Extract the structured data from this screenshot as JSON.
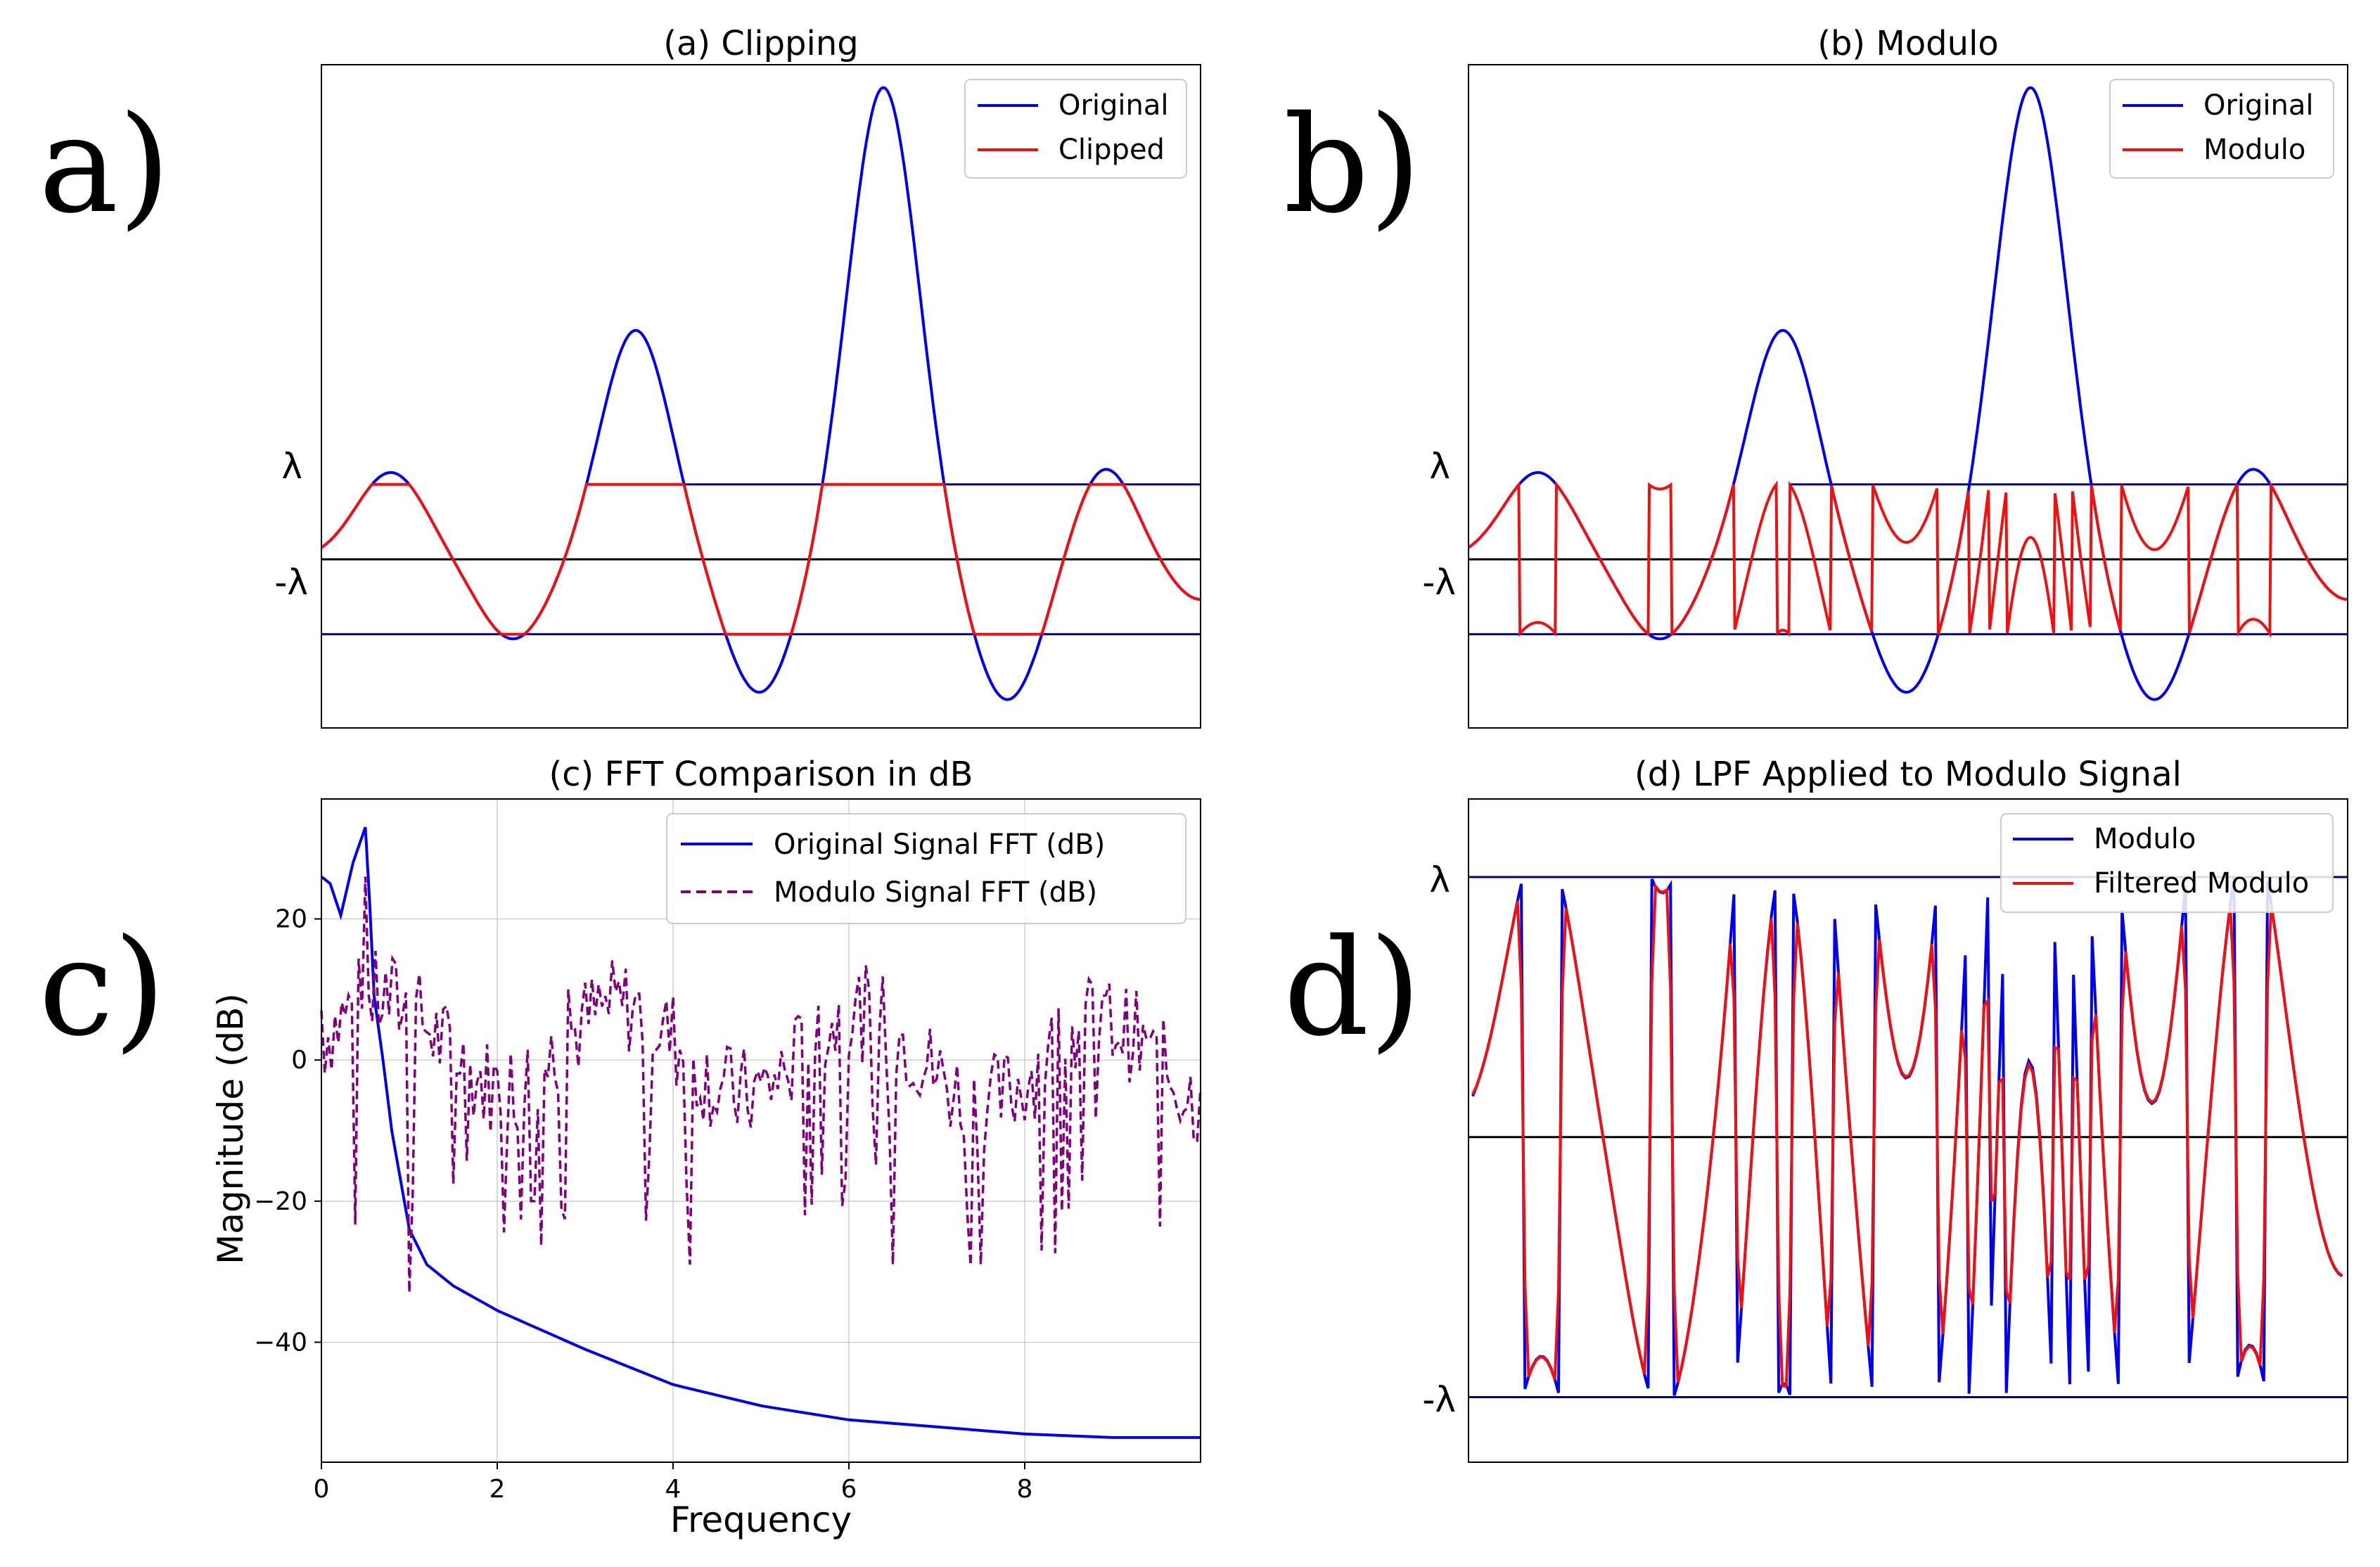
{
  "panel_letters": [
    "a)",
    "b)",
    "c)",
    "d)"
  ],
  "colors": {
    "original": "#0000ee",
    "clipped": "#ee1111",
    "modulo": "#ee1111",
    "modulo_fft": "#800080",
    "threshold": "#000080",
    "zero": "#000000"
  },
  "chart_data": [
    {
      "type": "line",
      "title": "(a) Clipping",
      "xlabel": "",
      "ylabel": "",
      "yticks": [
        "λ",
        "-λ"
      ],
      "threshold": 1.0,
      "legend": {
        "placement": "top-right",
        "entries": [
          "Original",
          "Clipped"
        ]
      },
      "grid": false,
      "series": [
        {
          "name": "Original",
          "x": [
            0,
            0.5,
            1.38,
            2.26,
            3.15,
            4.04,
            4.93,
            5.63,
            6.32
          ],
          "y": [
            0.36,
            1.16,
            -1.07,
            3.06,
            -1.79,
            6.3,
            -1.89,
            1.24,
            -0.02
          ]
        },
        {
          "name": "Clipped",
          "x": [
            0,
            0.5,
            1.38,
            2.26,
            3.15,
            4.04,
            4.93,
            5.63,
            6.32
          ],
          "y": [
            0.36,
            1.0,
            -1.0,
            1.0,
            -1.0,
            1.0,
            -1.0,
            1.0,
            -0.02
          ]
        }
      ]
    },
    {
      "type": "line",
      "title": "(b) Modulo",
      "xlabel": "",
      "ylabel": "",
      "yticks": [
        "λ",
        "-λ"
      ],
      "threshold": 1.0,
      "legend": {
        "placement": "top-right",
        "entries": [
          "Original",
          "Modulo"
        ]
      },
      "grid": false,
      "series": [
        {
          "name": "Original",
          "x": [
            0,
            0.5,
            1.38,
            2.26,
            3.15,
            4.04,
            4.93,
            5.63,
            6.32
          ],
          "y": [
            0.36,
            1.16,
            -1.07,
            3.06,
            -1.79,
            6.3,
            -1.89,
            1.24,
            -0.02
          ]
        },
        {
          "name": "Modulo",
          "note_values": "Original wrapped into [-λ, λ)"
        }
      ]
    },
    {
      "type": "line",
      "title": "(c) FFT Comparison in dB",
      "xlabel": "Frequency",
      "ylabel": "Magnitude (dB)",
      "xlim": [
        0,
        10
      ],
      "ylim": [
        -57,
        37
      ],
      "xticks": [
        0,
        2,
        4,
        6,
        8
      ],
      "yticks": [
        -40,
        -20,
        0,
        20
      ],
      "grid": true,
      "legend": {
        "placement": "top-right",
        "entries": [
          "Original Signal FFT (dB)",
          "Modulo Signal FFT (dB)"
        ]
      },
      "series": [
        {
          "name": "Original Signal FFT (dB)",
          "x": [
            0,
            0.1,
            0.22,
            0.36,
            0.5,
            0.55,
            0.6,
            0.7,
            0.8,
            1.0,
            1.2,
            1.5,
            2.0,
            3.0,
            4.0,
            5.0,
            6.0,
            7.0,
            8.0,
            9.0,
            10.0
          ],
          "y": [
            26,
            25,
            20.5,
            28,
            33,
            22,
            9,
            0,
            -10,
            -24,
            -29,
            -32,
            -35.5,
            -41,
            -46,
            -49,
            -51,
            -52,
            -53,
            -53.5,
            -53.5
          ]
        },
        {
          "name": "Modulo Signal FFT (dB)",
          "x": [
            0,
            0.5,
            1.0,
            2.4,
            2.8,
            4.0,
            4.2,
            5.5,
            6.5,
            7.5,
            8.2,
            9.4,
            10.0
          ],
          "y": [
            7,
            26,
            -33,
            -20,
            10,
            9,
            -29,
            -22,
            -29,
            -29,
            -27,
            3,
            -4
          ]
        }
      ]
    },
    {
      "type": "line",
      "title": "(d) LPF Applied to Modulo Signal",
      "xlabel": "",
      "ylabel": "",
      "yticks": [
        "λ",
        "-λ"
      ],
      "threshold": 1.0,
      "grid": false,
      "legend": {
        "placement": "top-right",
        "entries": [
          "Modulo",
          "Filtered Modulo"
        ]
      },
      "series": [
        {
          "name": "Modulo",
          "note_values": "Original wrapped into [-λ, λ)"
        },
        {
          "name": "Filtered Modulo",
          "note_values": "low-pass filtered Modulo"
        }
      ]
    }
  ]
}
